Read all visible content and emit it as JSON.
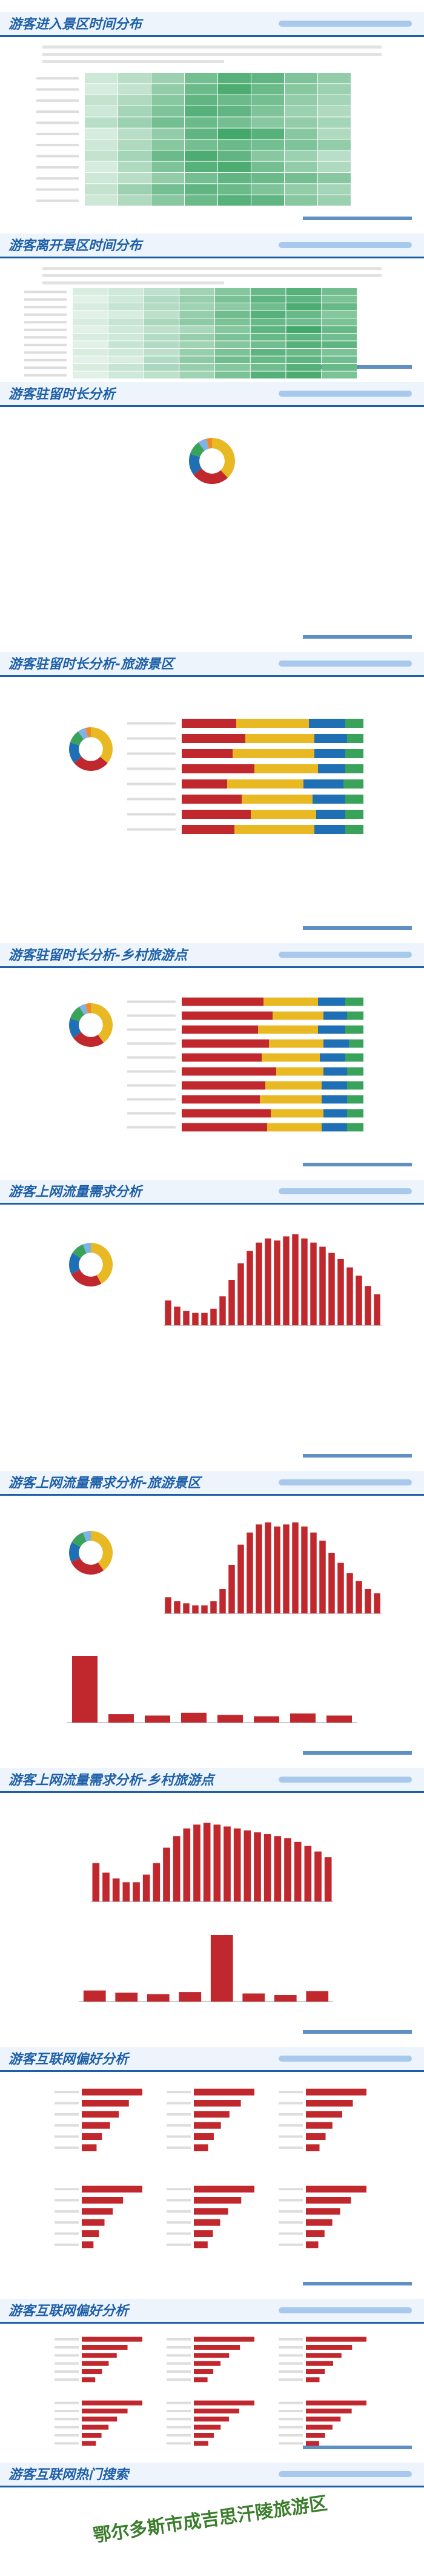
{
  "sections": [
    {
      "title": "游客进入景区时间分布",
      "charts": [
        {
          "type": "heatmap",
          "color": "#2e9e5a",
          "values": [
            [
              3,
              5,
              8,
              12,
              15,
              14,
              11,
              9
            ],
            [
              2,
              4,
              9,
              13,
              16,
              13,
              10,
              8
            ],
            [
              4,
              6,
              10,
              14,
              13,
              12,
              9,
              7
            ],
            [
              3,
              7,
              11,
              15,
              14,
              11,
              8,
              6
            ],
            [
              5,
              8,
              12,
              13,
              12,
              10,
              9,
              7
            ],
            [
              2,
              5,
              9,
              14,
              17,
              15,
              10,
              6
            ],
            [
              3,
              6,
              10,
              12,
              13,
              12,
              11,
              9
            ],
            [
              4,
              7,
              13,
              16,
              14,
              10,
              8,
              5
            ],
            [
              2,
              6,
              11,
              15,
              16,
              12,
              9,
              6
            ],
            [
              3,
              5,
              9,
              12,
              14,
              13,
              12,
              10
            ],
            [
              4,
              8,
              12,
              14,
              13,
              11,
              9,
              7
            ],
            [
              3,
              6,
              10,
              13,
              15,
              14,
              10,
              8
            ]
          ]
        }
      ]
    },
    {
      "title": "游客离开景区时间分布",
      "charts": [
        {
          "type": "heatmap",
          "color": "#2e9e5a",
          "values": [
            [
              2,
              3,
              5,
              8,
              11,
              14,
              16,
              13
            ],
            [
              1,
              3,
              6,
              9,
              12,
              15,
              15,
              12
            ],
            [
              2,
              4,
              6,
              8,
              10,
              13,
              17,
              14
            ],
            [
              1,
              2,
              5,
              9,
              13,
              16,
              14,
              11
            ],
            [
              2,
              4,
              7,
              10,
              12,
              14,
              13,
              12
            ],
            [
              1,
              3,
              5,
              7,
              11,
              15,
              18,
              14
            ],
            [
              2,
              3,
              6,
              9,
              12,
              14,
              15,
              13
            ],
            [
              1,
              4,
              6,
              8,
              11,
              13,
              16,
              15
            ],
            [
              2,
              3,
              5,
              9,
              12,
              15,
              14,
              12
            ],
            [
              1,
              2,
              6,
              10,
              13,
              14,
              15,
              13
            ],
            [
              2,
              4,
              7,
              9,
              11,
              13,
              16,
              14
            ],
            [
              1,
              3,
              5,
              8,
              12,
              16,
              17,
              12
            ]
          ]
        }
      ]
    },
    {
      "title": "游客驻留时长分析",
      "charts": [
        {
          "type": "donut",
          "colors": [
            "#e8b923",
            "#c0282d",
            "#1f6fb5",
            "#3aa35b",
            "#7fb2e5",
            "#f08a24"
          ],
          "values": [
            38,
            27,
            15,
            10,
            6,
            4
          ]
        }
      ]
    },
    {
      "title": "游客驻留时长分析-旅游景区",
      "charts": [
        {
          "type": "donut",
          "colors": [
            "#e8b923",
            "#c0282d",
            "#1f6fb5",
            "#3aa35b",
            "#7fb2e5",
            "#f08a24"
          ],
          "values": [
            36,
            28,
            16,
            10,
            6,
            4
          ]
        },
        {
          "type": "stacked",
          "colors": [
            "#c0282d",
            "#e8b923",
            "#1f6fb5",
            "#3aa35b"
          ],
          "values": [
            [
              30,
              40,
              20,
              10
            ],
            [
              35,
              38,
              18,
              9
            ],
            [
              28,
              45,
              17,
              10
            ],
            [
              40,
              35,
              15,
              10
            ],
            [
              25,
              42,
              22,
              11
            ],
            [
              33,
              39,
              18,
              10
            ],
            [
              38,
              36,
              16,
              10
            ],
            [
              29,
              44,
              17,
              10
            ]
          ]
        }
      ]
    },
    {
      "title": "游客驻留时长分析-乡村旅游点",
      "charts": [
        {
          "type": "donut",
          "colors": [
            "#e8b923",
            "#c0282d",
            "#1f6fb5",
            "#3aa35b",
            "#7fb2e5",
            "#f08a24"
          ],
          "values": [
            40,
            25,
            15,
            11,
            5,
            4
          ]
        },
        {
          "type": "stacked",
          "colors": [
            "#c0282d",
            "#e8b923",
            "#1f6fb5",
            "#3aa35b"
          ],
          "values": [
            [
              45,
              30,
              15,
              10
            ],
            [
              50,
              28,
              13,
              9
            ],
            [
              42,
              33,
              15,
              10
            ],
            [
              48,
              30,
              14,
              8
            ],
            [
              44,
              32,
              14,
              10
            ],
            [
              52,
              26,
              13,
              9
            ],
            [
              46,
              31,
              14,
              9
            ],
            [
              43,
              34,
              14,
              9
            ],
            [
              49,
              29,
              13,
              9
            ],
            [
              47,
              30,
              14,
              9
            ]
          ]
        }
      ]
    },
    {
      "title": "游客上网流量需求分析",
      "charts": [
        {
          "type": "donut",
          "colors": [
            "#e8b923",
            "#c0282d",
            "#1f6fb5",
            "#3aa35b",
            "#7fb2e5"
          ],
          "values": [
            42,
            26,
            16,
            10,
            6
          ]
        },
        {
          "type": "bar",
          "color": "#c0282d",
          "values": [
            12,
            9,
            7,
            6,
            6,
            8,
            14,
            22,
            30,
            36,
            40,
            42,
            41,
            43,
            44,
            42,
            40,
            38,
            35,
            32,
            28,
            24,
            19,
            15
          ]
        }
      ]
    },
    {
      "title": "游客上网流量需求分析-旅游景区",
      "charts": [
        {
          "type": "donut",
          "colors": [
            "#e8b923",
            "#c0282d",
            "#1f6fb5",
            "#3aa35b",
            "#7fb2e5"
          ],
          "values": [
            40,
            28,
            15,
            11,
            6
          ]
        },
        {
          "type": "bar",
          "color": "#c0282d",
          "values": [
            8,
            6,
            5,
            4,
            4,
            6,
            12,
            24,
            34,
            40,
            44,
            45,
            43,
            44,
            45,
            43,
            40,
            36,
            30,
            25,
            20,
            16,
            12,
            10
          ]
        },
        {
          "type": "bar",
          "color": "#c0282d",
          "values": [
            95,
            12,
            10,
            14,
            11,
            9,
            13,
            10
          ]
        }
      ]
    },
    {
      "title": "游客上网流量需求分析-乡村旅游点",
      "charts": [
        {
          "type": "bar",
          "color": "#c0282d",
          "values": [
            20,
            15,
            12,
            10,
            10,
            14,
            20,
            28,
            34,
            38,
            40,
            41,
            40,
            39,
            38,
            37,
            36,
            35,
            34,
            33,
            31,
            29,
            26,
            23
          ]
        },
        {
          "type": "bar",
          "color": "#c0282d",
          "values": [
            15,
            12,
            10,
            13,
            90,
            11,
            9,
            14
          ]
        }
      ]
    },
    {
      "title": "游客互联网偏好分析",
      "charts": [
        {
          "type": "hbar",
          "color": "#c0282d",
          "values": [
            90,
            70,
            55,
            42,
            30,
            22
          ]
        },
        {
          "type": "hbar",
          "color": "#c0282d",
          "values": [
            85,
            66,
            50,
            38,
            28,
            20
          ]
        },
        {
          "type": "hbar",
          "color": "#c0282d",
          "values": [
            80,
            62,
            48,
            35,
            26,
            18
          ]
        },
        {
          "type": "hbar",
          "color": "#c0282d",
          "values": [
            88,
            60,
            45,
            33,
            25,
            17
          ]
        },
        {
          "type": "hbar",
          "color": "#c0282d",
          "values": [
            92,
            72,
            52,
            40,
            29,
            21
          ]
        },
        {
          "type": "hbar",
          "color": "#c0282d",
          "values": [
            78,
            58,
            44,
            34,
            24,
            16
          ]
        }
      ]
    },
    {
      "title": "游客互联网偏好分析",
      "charts": [
        {
          "type": "hbar",
          "color": "#c0282d",
          "values": [
            90,
            68,
            52,
            40,
            30,
            20
          ]
        },
        {
          "type": "hbar",
          "color": "#c0282d",
          "values": [
            84,
            64,
            49,
            37,
            27,
            19
          ]
        },
        {
          "type": "hbar",
          "color": "#c0282d",
          "values": [
            80,
            61,
            47,
            36,
            25,
            18
          ]
        },
        {
          "type": "hbar",
          "color": "#c0282d",
          "values": [
            86,
            65,
            50,
            38,
            28,
            20
          ]
        },
        {
          "type": "hbar",
          "color": "#c0282d",
          "values": [
            88,
            66,
            51,
            39,
            29,
            21
          ]
        },
        {
          "type": "hbar",
          "color": "#c0282d",
          "values": [
            82,
            62,
            47,
            36,
            26,
            18
          ]
        }
      ]
    },
    {
      "title": "游客互联网热门搜索",
      "charts": [
        {
          "type": "wordcloud",
          "words": [
            "鄂尔多斯市成吉思汗陵旅游区"
          ]
        }
      ]
    }
  ]
}
